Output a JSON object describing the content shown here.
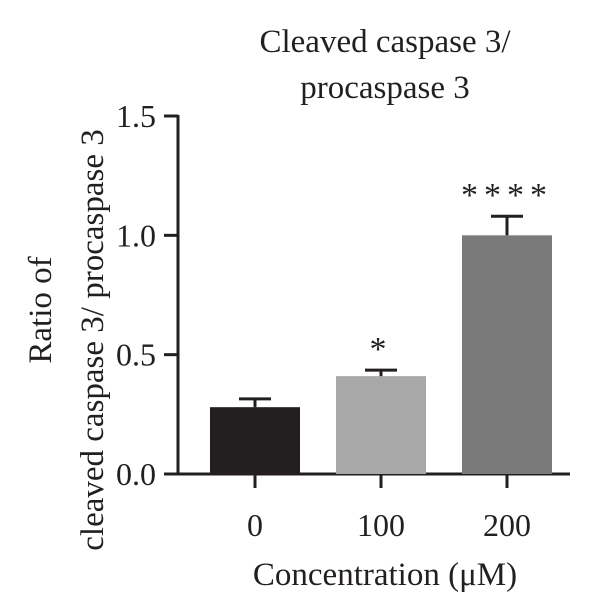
{
  "chart_data": {
    "type": "bar",
    "title": [
      "Cleaved caspase 3/",
      "procaspase 3"
    ],
    "ylabel": [
      "Ratio of",
      "cleaved caspase 3/ procaspase 3"
    ],
    "xlabel": "Concentration (μM)",
    "categories": [
      "0",
      "100",
      "200"
    ],
    "values": [
      0.28,
      0.41,
      1.0
    ],
    "errors": [
      0.035,
      0.025,
      0.08
    ],
    "significance": [
      "",
      "*",
      "****"
    ],
    "bar_colors": [
      "#231f20",
      "#a8a8a8",
      "#7a7a7a"
    ],
    "ylim": [
      0,
      1.5
    ],
    "yticks": [
      0.0,
      0.5,
      1.0,
      1.5
    ],
    "ytick_labels": [
      "0.0",
      "0.5",
      "1.0",
      "1.5"
    ],
    "grid": false,
    "legend": "none"
  }
}
